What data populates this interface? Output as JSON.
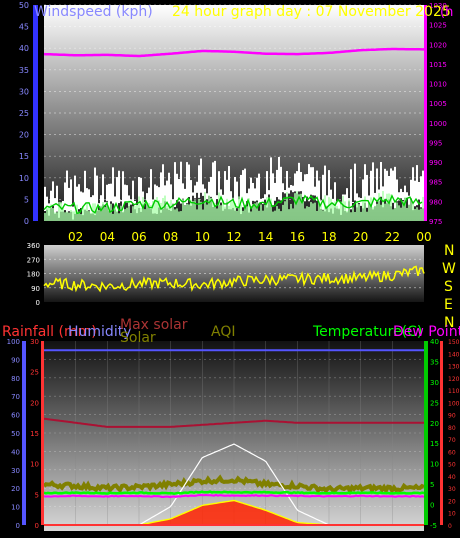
{
  "header": {
    "title_left": "Windspeed (kph)",
    "title_center": "24 hour graph day : 07 November 2025",
    "title_right": "(h"
  },
  "colors": {
    "wind": "#ffffff",
    "gust_avg": "#00cc00",
    "gust_fill": "#aaffaa",
    "pressure": "#ff00ff",
    "direction": "#ffff00",
    "rain": "#ff3333",
    "humidity": "#5555ff",
    "solar": "#808000",
    "max_solar": "#ffffff",
    "aqi": "#808000",
    "temperature": "#00ff00",
    "dewpoint": "#ff00ff",
    "time_labels": "#ffff00"
  },
  "compass": [
    "N",
    "W",
    "S",
    "E",
    "N"
  ],
  "chart_data": [
    {
      "type": "area",
      "panel": "wind-pressure",
      "x": [
        "00",
        "02",
        "04",
        "06",
        "08",
        "10",
        "12",
        "14",
        "16",
        "18",
        "20",
        "22",
        "00"
      ],
      "xticks": [
        "02",
        "04",
        "06",
        "08",
        "10",
        "12",
        "14",
        "16",
        "18",
        "20",
        "22",
        "00"
      ],
      "y_left_label": "Windspeed (kph)",
      "y_left_ticks": [
        0,
        5,
        10,
        15,
        20,
        25,
        30,
        35,
        40,
        45,
        50
      ],
      "ylim_left": [
        0,
        50
      ],
      "y_right_label": "(h",
      "y_right_ticks": [
        975,
        980,
        985,
        990,
        995,
        1000,
        1005,
        1010,
        1015,
        1020,
        1025,
        1030
      ],
      "ylim_right": [
        975,
        1030
      ],
      "series": [
        {
          "name": "wind_max",
          "values": [
            8,
            7,
            9,
            8,
            9,
            11,
            8,
            10,
            12,
            8,
            9,
            10,
            9
          ]
        },
        {
          "name": "wind_avg",
          "values": [
            3,
            3,
            3,
            4,
            4,
            5,
            4,
            4,
            5,
            4,
            4,
            5,
            4
          ]
        },
        {
          "name": "pressure",
          "values": [
            1017.5,
            1017.2,
            1017.3,
            1017,
            1017.6,
            1018.3,
            1018.1,
            1017.6,
            1017.5,
            1017.8,
            1018.5,
            1018.8,
            1018.7
          ]
        }
      ]
    },
    {
      "type": "line",
      "panel": "wind-direction",
      "x": [
        "00",
        "02",
        "04",
        "06",
        "08",
        "10",
        "12",
        "14",
        "16",
        "18",
        "20",
        "22",
        "00"
      ],
      "y_ticks": [
        0,
        90,
        180,
        270,
        360
      ],
      "ylim": [
        0,
        360
      ],
      "series": [
        {
          "name": "direction",
          "values": [
            120,
            110,
            100,
            115,
            120,
            110,
            130,
            140,
            145,
            150,
            150,
            170,
            200
          ]
        }
      ]
    },
    {
      "type": "line",
      "panel": "rain-solar-temp",
      "x": [
        "00",
        "02",
        "04",
        "06",
        "08",
        "10",
        "12",
        "14",
        "16",
        "18",
        "20",
        "22",
        "00"
      ],
      "legend_top_left": [
        "Rainfall (mm)",
        "Humidity",
        "Max solar",
        "Solar",
        "AQI"
      ],
      "legend_top_right": [
        "Temperature(C)",
        "Dew Point"
      ],
      "humidity_ticks": [
        0,
        10,
        20,
        30,
        40,
        50,
        60,
        70,
        80,
        90,
        100
      ],
      "rain_ticks": [
        0,
        5,
        10,
        15,
        20,
        25,
        30
      ],
      "temp_ticks": [
        -5,
        0,
        5,
        10,
        15,
        20,
        25,
        30,
        35,
        40
      ],
      "solar_ticks": [
        0,
        10,
        20,
        30,
        40,
        50,
        60,
        70,
        80,
        90,
        100,
        110,
        120,
        130,
        140,
        150
      ],
      "ylim_humidity": [
        0,
        100
      ],
      "ylim_rain": [
        0,
        30
      ],
      "ylim_temp": [
        -5,
        40
      ],
      "ylim_solar": [
        0,
        150
      ],
      "series": [
        {
          "name": "humidity",
          "values": [
            95,
            95,
            95,
            95,
            95,
            95,
            95,
            95,
            95,
            95,
            95,
            95,
            95
          ]
        },
        {
          "name": "temperature",
          "values": [
            2.8,
            2.9,
            2.8,
            2.9,
            2.7,
            3.1,
            3.0,
            3.0,
            2.9,
            2.8,
            2.9,
            2.8,
            2.8
          ]
        },
        {
          "name": "dewpoint",
          "values": [
            2.0,
            2.1,
            2.0,
            2.1,
            1.9,
            2.3,
            2.2,
            2.2,
            2.1,
            2.0,
            2.1,
            2.0,
            2.0
          ]
        },
        {
          "name": "rain",
          "values": [
            0,
            0,
            0,
            0,
            0,
            0,
            0,
            0,
            0,
            0,
            0,
            0,
            0
          ]
        },
        {
          "name": "solar",
          "values": [
            0,
            0,
            0,
            0,
            5,
            16,
            20,
            12,
            2,
            0,
            0,
            0,
            0
          ]
        },
        {
          "name": "max_solar",
          "values": [
            0,
            0,
            0,
            0,
            15,
            55,
            66,
            52,
            12,
            0,
            0,
            0,
            0
          ]
        },
        {
          "name": "aqi",
          "values": [
            33,
            32,
            30,
            31,
            33,
            36,
            37,
            33,
            32,
            29,
            30,
            30,
            30
          ]
        }
      ]
    }
  ]
}
